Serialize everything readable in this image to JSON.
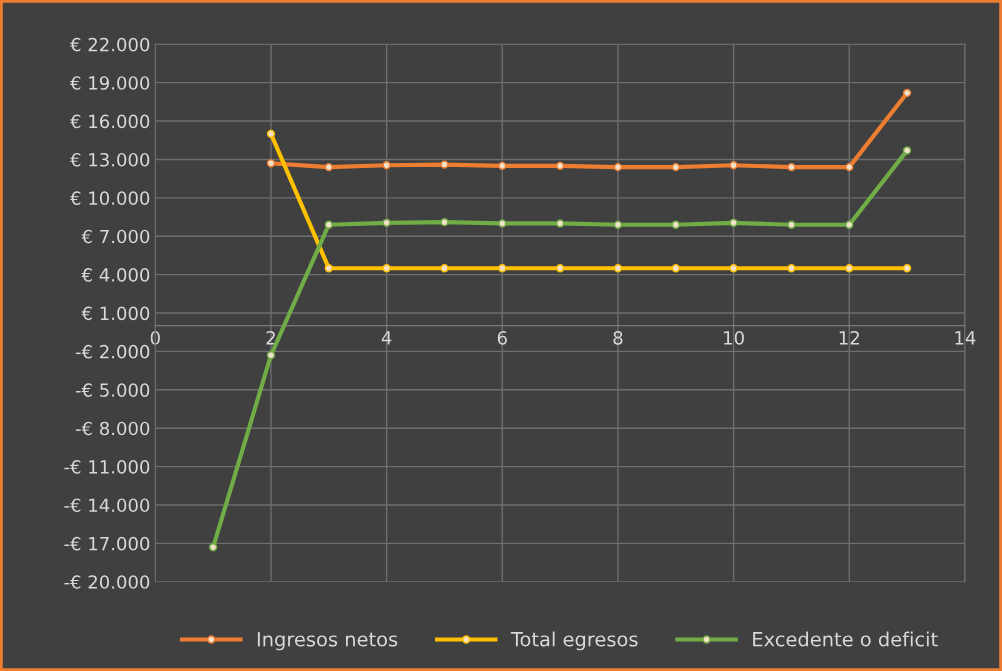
{
  "chart_data": {
    "type": "line",
    "x": [
      1,
      2,
      3,
      4,
      5,
      6,
      7,
      8,
      9,
      10,
      11,
      12,
      13
    ],
    "series": [
      {
        "name": "Ingresos netos",
        "color": "#ed7d31",
        "values": [
          null,
          12700,
          12400,
          12550,
          12600,
          12500,
          12500,
          12400,
          12400,
          12550,
          12400,
          12400,
          18200
        ]
      },
      {
        "name": "Total egresos",
        "color": "#ffc000",
        "values": [
          null,
          15000,
          4500,
          4500,
          4500,
          4500,
          4500,
          4500,
          4500,
          4500,
          4500,
          4500,
          4500
        ]
      },
      {
        "name": "Excedente o deficit",
        "color": "#70ad47",
        "values": [
          -17300,
          -2300,
          7900,
          8050,
          8100,
          8000,
          8000,
          7900,
          7900,
          8050,
          7900,
          7900,
          13700
        ]
      }
    ],
    "xlim": [
      0,
      14
    ],
    "xticks": [
      0,
      2,
      4,
      6,
      8,
      10,
      12,
      14
    ],
    "ylim": [
      -20000,
      22000
    ],
    "yticks": [
      {
        "value": -20000,
        "label": "-€ 20.000"
      },
      {
        "value": -17000,
        "label": "-€ 17.000"
      },
      {
        "value": -14000,
        "label": "-€ 14.000"
      },
      {
        "value": -11000,
        "label": "-€ 11.000"
      },
      {
        "value": -8000,
        "label": "-€ 8.000"
      },
      {
        "value": -5000,
        "label": "-€ 5.000"
      },
      {
        "value": -2000,
        "label": "-€ 2.000"
      },
      {
        "value": 1000,
        "label": "€ 1.000"
      },
      {
        "value": 4000,
        "label": "€ 4.000"
      },
      {
        "value": 7000,
        "label": "€ 7.000"
      },
      {
        "value": 10000,
        "label": "€ 10.000"
      },
      {
        "value": 13000,
        "label": "€ 13.000"
      },
      {
        "value": 16000,
        "label": "€ 16.000"
      },
      {
        "value": 19000,
        "label": "€ 19.000"
      },
      {
        "value": 22000,
        "label": "€ 22.000"
      }
    ],
    "grid": true,
    "legend": "bottom",
    "marker": "circle",
    "line_style": "solid"
  }
}
